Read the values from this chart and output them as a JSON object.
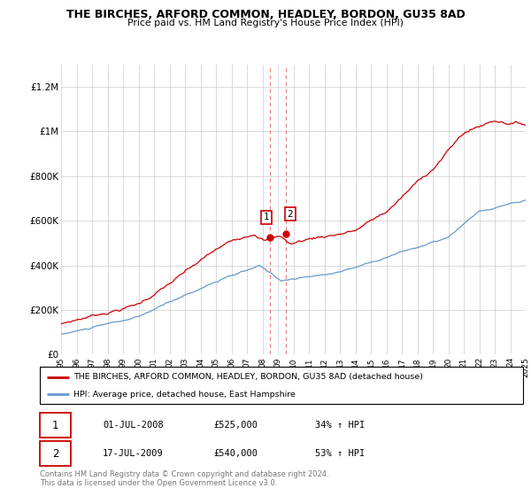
{
  "title": "THE BIRCHES, ARFORD COMMON, HEADLEY, BORDON, GU35 8AD",
  "subtitle": "Price paid vs. HM Land Registry's House Price Index (HPI)",
  "ylim": [
    0,
    1300000
  ],
  "yticks": [
    0,
    200000,
    400000,
    600000,
    800000,
    1000000,
    1200000
  ],
  "ytick_labels": [
    "£0",
    "£200K",
    "£400K",
    "£600K",
    "£800K",
    "£1M",
    "£1.2M"
  ],
  "red_color": "#cc0000",
  "blue_color": "#6699cc",
  "vline_color": "#e88080",
  "vline_x1": 2008.5,
  "vline_x2": 2009.54,
  "marker1_x": 2008.5,
  "marker1_y": 525000,
  "marker2_x": 2009.54,
  "marker2_y": 540000,
  "legend_label_red": "THE BIRCHES, ARFORD COMMON, HEADLEY, BORDON, GU35 8AD (detached house)",
  "legend_label_blue": "HPI: Average price, detached house, East Hampshire",
  "sale1_date": "01-JUL-2008",
  "sale1_price": "£525,000",
  "sale1_hpi": "34% ↑ HPI",
  "sale2_date": "17-JUL-2009",
  "sale2_price": "£540,000",
  "sale2_hpi": "53% ↑ HPI",
  "footer": "Contains HM Land Registry data © Crown copyright and database right 2024.\nThis data is licensed under the Open Government Licence v3.0.",
  "xmin": 1995,
  "xmax": 2025
}
